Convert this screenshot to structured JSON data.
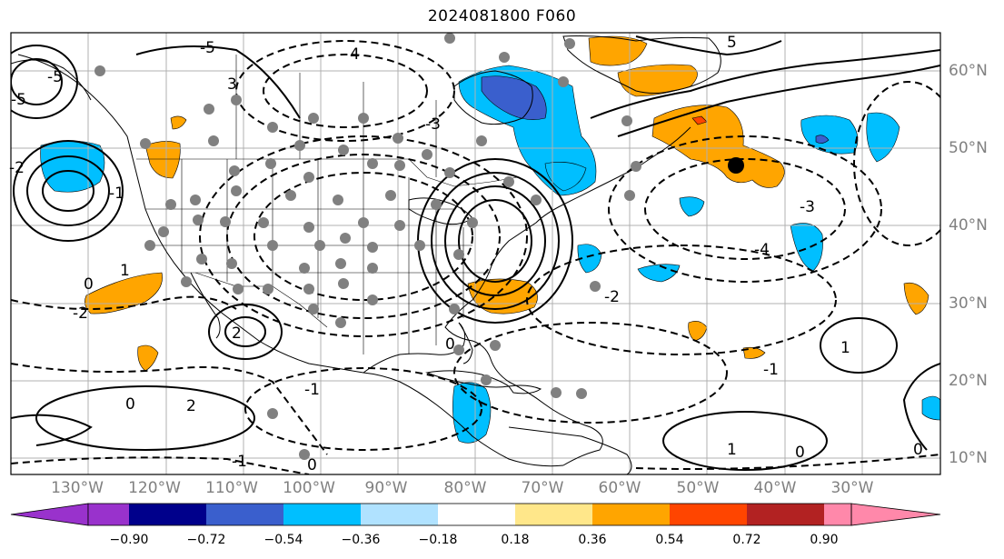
{
  "title": "2024081800 F060",
  "map": {
    "longitude_labels": [
      "130°W",
      "120°W",
      "110°W",
      "100°W",
      "90°W",
      "80°W",
      "70°W",
      "60°W",
      "50°W",
      "40°W",
      "30°W"
    ],
    "latitude_labels": [
      "60°N",
      "50°N",
      "40°N",
      "30°N",
      "20°N",
      "10°N"
    ],
    "contour_labels": [
      "-5",
      "-5",
      "4",
      "-5",
      "-3",
      "3",
      "2",
      "1",
      "-2",
      "0",
      "-1",
      "2",
      "0",
      "1",
      "-1",
      "0",
      "0",
      "-2",
      "-3",
      "-4",
      "-1",
      "5",
      "-2",
      "0",
      "-1",
      "1",
      "0"
    ],
    "marker": "black-dot",
    "grid": true
  },
  "colorbar": {
    "ticks": [
      "−0.90",
      "−0.72",
      "−0.54",
      "−0.36",
      "−0.18",
      "0.18",
      "0.36",
      "0.54",
      "0.72",
      "0.90"
    ],
    "colors": [
      "#9932cc",
      "#00008b",
      "#3a5fcd",
      "#00bfff",
      "#b0e2ff",
      "#ffffff",
      "#ffe78a",
      "#ffa500",
      "#ff4500",
      "#b22222",
      "#ff88aa"
    ],
    "extend": "both"
  }
}
